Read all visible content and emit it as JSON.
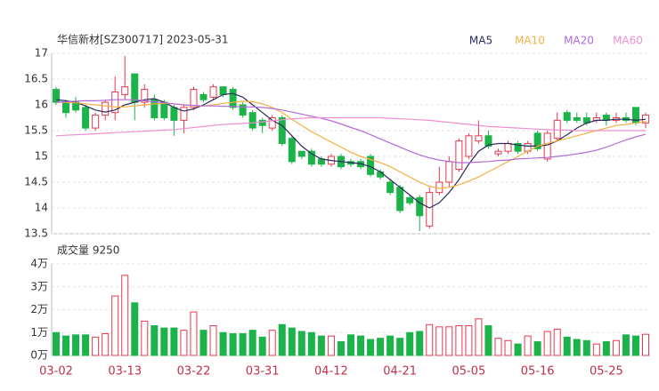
{
  "chart_data": [
    {
      "type": "candlestick",
      "title": "华信新材[SZ300717] 2023-05-31",
      "categories": [
        "03-02",
        null,
        null,
        null,
        null,
        null,
        null,
        "03-13",
        null,
        null,
        null,
        null,
        null,
        null,
        "03-22",
        null,
        null,
        null,
        null,
        null,
        null,
        "03-31",
        null,
        null,
        null,
        null,
        null,
        null,
        "04-12",
        null,
        null,
        null,
        null,
        null,
        null,
        "04-21",
        null,
        null,
        null,
        null,
        null,
        null,
        "05-05",
        null,
        null,
        null,
        null,
        null,
        null,
        "05-16",
        null,
        null,
        null,
        null,
        null,
        null,
        "05-25",
        null,
        null,
        null,
        null
      ],
      "open": [
        16.3,
        16.05,
        16.05,
        15.95,
        15.55,
        15.8,
        15.85,
        16.2,
        16.6,
        16.05,
        16.1,
        16.05,
        15.95,
        15.7,
        15.95,
        16.2,
        16.15,
        16.35,
        16.3,
        16.0,
        15.85,
        15.7,
        15.55,
        15.75,
        15.35,
        15.1,
        15.1,
        14.95,
        14.85,
        15.0,
        14.9,
        14.9,
        15.0,
        14.7,
        14.5,
        14.4,
        14.2,
        14.2,
        13.65,
        14.3,
        14.5,
        14.75,
        15.0,
        15.3,
        15.4,
        15.05,
        15.1,
        15.25,
        15.1,
        15.45,
        14.95,
        15.35,
        15.85,
        15.75,
        15.75,
        15.7,
        15.8,
        15.7,
        15.75,
        15.95,
        15.65
      ],
      "high": [
        16.35,
        16.1,
        16.15,
        16.0,
        15.85,
        16.1,
        16.55,
        16.95,
        16.6,
        16.4,
        16.2,
        16.1,
        16.0,
        16.0,
        16.35,
        16.25,
        16.4,
        16.35,
        16.35,
        16.05,
        15.9,
        15.75,
        15.8,
        15.8,
        15.4,
        15.1,
        15.15,
        15.0,
        15.05,
        15.05,
        14.95,
        14.95,
        15.05,
        14.75,
        14.55,
        14.45,
        14.25,
        14.25,
        14.4,
        14.8,
        15.0,
        15.35,
        15.45,
        15.7,
        15.5,
        15.15,
        15.3,
        15.3,
        15.3,
        15.5,
        15.5,
        15.85,
        15.9,
        15.85,
        15.85,
        15.85,
        15.85,
        15.85,
        15.85,
        15.95,
        15.85
      ],
      "low": [
        16.0,
        15.75,
        15.85,
        15.5,
        15.5,
        15.7,
        15.7,
        16.1,
        15.7,
        15.95,
        15.7,
        15.7,
        15.4,
        15.45,
        15.9,
        16.05,
        16.1,
        16.15,
        15.9,
        15.75,
        15.5,
        15.45,
        15.5,
        15.2,
        14.85,
        14.95,
        14.8,
        14.8,
        14.8,
        14.75,
        14.8,
        14.75,
        14.6,
        14.55,
        14.25,
        13.9,
        14.05,
        13.55,
        13.6,
        14.25,
        14.4,
        14.7,
        14.95,
        15.25,
        15.15,
        15.0,
        15.05,
        15.05,
        15.05,
        15.1,
        14.9,
        15.3,
        15.65,
        15.65,
        15.6,
        15.65,
        15.6,
        15.65,
        15.65,
        15.6,
        15.55
      ],
      "close": [
        16.05,
        15.85,
        15.9,
        15.55,
        15.8,
        16.05,
        16.25,
        16.35,
        16.05,
        16.3,
        15.75,
        15.75,
        15.7,
        15.95,
        16.3,
        16.1,
        16.35,
        16.2,
        15.95,
        15.8,
        15.55,
        15.6,
        15.75,
        15.25,
        14.9,
        15.0,
        14.85,
        14.85,
        15.0,
        14.8,
        14.85,
        14.8,
        14.65,
        14.6,
        14.3,
        13.95,
        14.1,
        13.85,
        14.3,
        14.5,
        14.9,
        15.3,
        15.4,
        15.4,
        15.2,
        15.1,
        15.25,
        15.1,
        15.25,
        15.15,
        15.45,
        15.7,
        15.7,
        15.7,
        15.65,
        15.75,
        15.7,
        15.75,
        15.7,
        15.65,
        15.8
      ],
      "up_color": "#e8384f",
      "down_color": "#1bb34a",
      "series": [
        {
          "name": "MA5",
          "color": "#2b2b5a",
          "values": [
            16.1,
            16.08,
            16.05,
            15.98,
            15.9,
            15.86,
            15.9,
            16.0,
            16.05,
            16.1,
            16.12,
            16.05,
            15.95,
            15.88,
            15.92,
            16.0,
            16.1,
            16.2,
            16.22,
            16.15,
            16.0,
            15.85,
            15.7,
            15.6,
            15.4,
            15.2,
            15.05,
            14.95,
            14.92,
            14.9,
            14.88,
            14.86,
            14.8,
            14.7,
            14.55,
            14.4,
            14.25,
            14.1,
            14.0,
            14.1,
            14.3,
            14.55,
            14.85,
            15.1,
            15.22,
            15.25,
            15.25,
            15.22,
            15.2,
            15.2,
            15.22,
            15.3,
            15.42,
            15.55,
            15.65,
            15.7,
            15.7,
            15.72,
            15.72,
            15.7,
            15.72
          ]
        },
        {
          "name": "MA10",
          "color": "#f5b041",
          "values": [
            16.05,
            16.05,
            16.04,
            16.02,
            16.0,
            15.98,
            15.96,
            15.96,
            15.98,
            16.0,
            16.02,
            16.03,
            16.02,
            16.0,
            15.98,
            15.98,
            16.0,
            16.03,
            16.05,
            16.07,
            16.06,
            16.02,
            15.95,
            15.85,
            15.72,
            15.6,
            15.48,
            15.38,
            15.28,
            15.18,
            15.08,
            15.0,
            14.94,
            14.88,
            14.8,
            14.7,
            14.6,
            14.5,
            14.42,
            14.38,
            14.4,
            14.45,
            14.52,
            14.6,
            14.7,
            14.8,
            14.9,
            15.0,
            15.1,
            15.2,
            15.25,
            15.3,
            15.35,
            15.4,
            15.45,
            15.5,
            15.55,
            15.6,
            15.62,
            15.65,
            15.68
          ]
        },
        {
          "name": "MA20",
          "color": "#b36ad8",
          "values": [
            16.05,
            16.06,
            16.07,
            16.08,
            16.08,
            16.09,
            16.1,
            16.1,
            16.1,
            16.08,
            16.06,
            16.04,
            16.02,
            16.0,
            15.99,
            15.98,
            15.98,
            15.97,
            15.97,
            15.96,
            15.96,
            15.95,
            15.93,
            15.9,
            15.86,
            15.82,
            15.78,
            15.74,
            15.69,
            15.63,
            15.56,
            15.5,
            15.42,
            15.34,
            15.26,
            15.18,
            15.1,
            15.03,
            14.97,
            14.93,
            14.9,
            14.88,
            14.88,
            14.89,
            14.9,
            14.92,
            14.93,
            14.95,
            14.96,
            14.97,
            14.98,
            15.0,
            15.02,
            15.05,
            15.08,
            15.12,
            15.18,
            15.25,
            15.32,
            15.38,
            15.43
          ]
        },
        {
          "name": "MA60",
          "color": "#f08fd0",
          "values": [
            15.4,
            15.41,
            15.42,
            15.43,
            15.44,
            15.45,
            15.46,
            15.47,
            15.48,
            15.49,
            15.5,
            15.51,
            15.52,
            15.54,
            15.56,
            15.58,
            15.6,
            15.62,
            15.63,
            15.64,
            15.65,
            15.67,
            15.69,
            15.71,
            15.73,
            15.74,
            15.75,
            15.75,
            15.75,
            15.75,
            15.75,
            15.75,
            15.75,
            15.75,
            15.74,
            15.73,
            15.72,
            15.71,
            15.7,
            15.68,
            15.66,
            15.64,
            15.62,
            15.6,
            15.58,
            15.57,
            15.56,
            15.55,
            15.54,
            15.53,
            15.52,
            15.51,
            15.51,
            15.5,
            15.5,
            15.5,
            15.5,
            15.5,
            15.5,
            15.5,
            15.5
          ]
        }
      ],
      "ylim": [
        13.5,
        17
      ],
      "yticks": [
        17,
        16.5,
        16,
        15.5,
        15,
        14.5,
        14,
        13.5
      ],
      "grid": true
    },
    {
      "type": "bar",
      "title": "成交量 9250",
      "values": [
        1.0,
        0.85,
        0.9,
        0.9,
        0.8,
        0.95,
        2.6,
        3.5,
        2.3,
        1.5,
        1.3,
        1.2,
        1.2,
        1.1,
        1.9,
        1.1,
        1.3,
        1.0,
        0.95,
        0.95,
        1.1,
        0.8,
        1.1,
        1.35,
        1.2,
        1.05,
        1.0,
        0.85,
        0.85,
        0.6,
        0.9,
        0.85,
        0.7,
        0.75,
        0.85,
        0.75,
        1.0,
        1.05,
        1.35,
        1.25,
        1.25,
        1.3,
        1.3,
        1.6,
        1.3,
        0.75,
        0.65,
        0.5,
        0.85,
        0.6,
        1.05,
        1.15,
        0.8,
        0.7,
        0.65,
        0.5,
        0.6,
        0.65,
        0.9,
        0.85,
        0.925
      ],
      "ylim": [
        0,
        4
      ],
      "yticks": [
        {
          "value": 4,
          "label": "4万"
        },
        {
          "value": 3,
          "label": "3万"
        },
        {
          "value": 2,
          "label": "2万"
        },
        {
          "value": 1,
          "label": "1万"
        },
        {
          "value": 0,
          "label": "0万"
        }
      ],
      "grid": true
    }
  ]
}
